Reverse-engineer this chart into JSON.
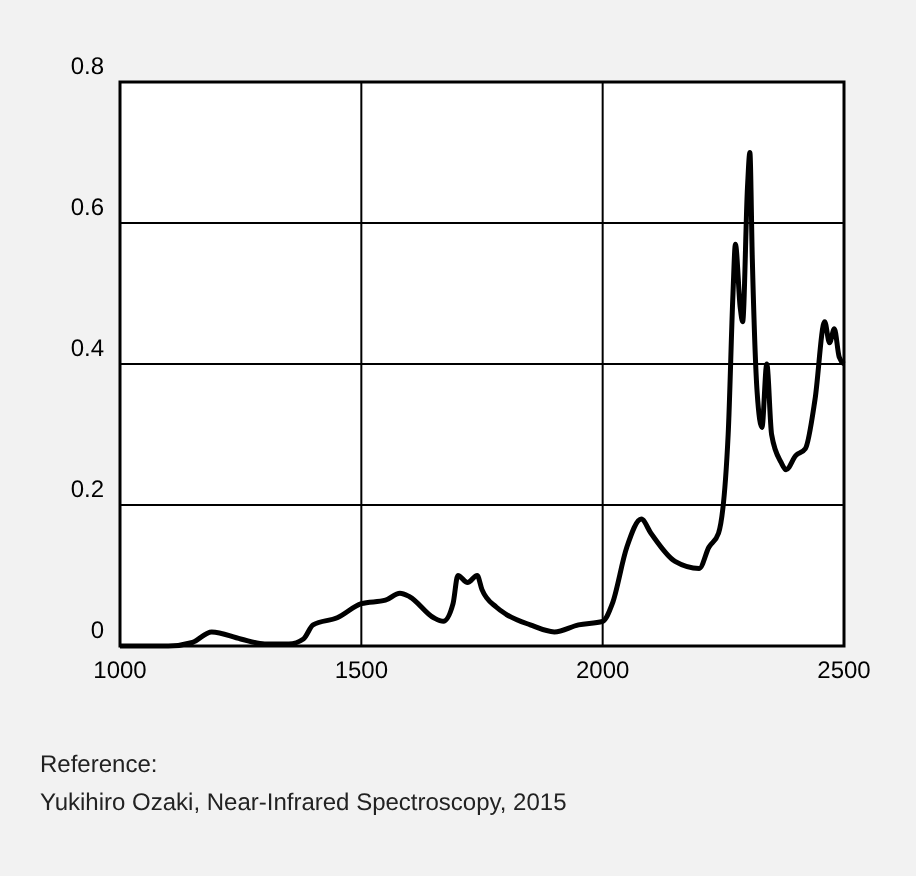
{
  "chart_data": {
    "type": "line",
    "x": [
      1000,
      1100,
      1150,
      1190,
      1250,
      1300,
      1350,
      1380,
      1400,
      1450,
      1500,
      1550,
      1580,
      1600,
      1650,
      1670,
      1690,
      1700,
      1720,
      1740,
      1750,
      1780,
      1800,
      1850,
      1900,
      1950,
      2000,
      2020,
      2050,
      2080,
      2100,
      2150,
      2200,
      2220,
      2240,
      2260,
      2270,
      2275,
      2285,
      2290,
      2300,
      2305,
      2310,
      2320,
      2330,
      2340,
      2350,
      2370,
      2380,
      2400,
      2420,
      2440,
      2460,
      2470,
      2480,
      2490,
      2500
    ],
    "series": [
      {
        "color": "#000000",
        "values": [
          0,
          0,
          0.005,
          0.02,
          0.01,
          0.003,
          0.003,
          0.01,
          0.03,
          0.04,
          0.06,
          0.065,
          0.075,
          0.07,
          0.04,
          0.035,
          0.06,
          0.1,
          0.09,
          0.1,
          0.08,
          0.055,
          0.045,
          0.03,
          0.02,
          0.03,
          0.035,
          0.06,
          0.14,
          0.18,
          0.16,
          0.12,
          0.11,
          0.14,
          0.16,
          0.3,
          0.5,
          0.57,
          0.48,
          0.46,
          0.65,
          0.7,
          0.55,
          0.36,
          0.31,
          0.4,
          0.3,
          0.26,
          0.25,
          0.27,
          0.28,
          0.35,
          0.46,
          0.43,
          0.45,
          0.41,
          0.4
        ]
      }
    ],
    "xlim": [
      1000,
      2500
    ],
    "xticks": [
      1000,
      1500,
      2000,
      2500
    ],
    "ylim": [
      0,
      0.8
    ],
    "yticks": [
      0,
      0.2,
      0.4,
      0.6,
      0.8
    ],
    "grid": true,
    "annotations": [
      "Reference:",
      "Yukihiro Ozaki, Near-Infrared Spectroscopy, 2015"
    ]
  }
}
